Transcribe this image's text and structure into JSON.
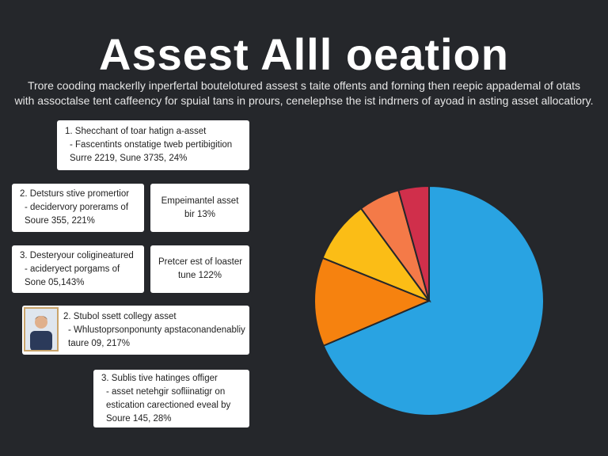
{
  "title": "Assest Alll oeation",
  "subtitle": [
    "Trore cooding mackerlly inperfertal boutelotured assest s taite offents and forning then reepic appademal of otats",
    "with assoctalse tent caffeency for spuial tans in prours, cenelephse the ist indrners of ayoad in asting asset allocatiory."
  ],
  "cards": [
    {
      "lines": [
        "1.  Shecchant of toar hatign a-asset",
        "- Fascentints onstatige tweb pertibigition",
        "Surre 2219, Sune 3735, 24%"
      ]
    },
    {
      "lines": [
        "2.  Detsturs stive promertior",
        "- decidervory porerams of",
        "Soure 355, 221%"
      ]
    },
    {
      "lines": [
        "Empeimantel asset",
        "bir 13%"
      ]
    },
    {
      "lines": [
        "3.  Desteryour coligineatured",
        "- acideryect porgams of",
        "Sone 05,143%"
      ]
    },
    {
      "lines": [
        "Pretcer est of loaster",
        "tune 122%"
      ]
    },
    {
      "lines": [
        "2.  Stubol ssett collegy asset",
        "- Whlustoprsonponunty apstaconandenabliy",
        "taure 09, 217%"
      ]
    },
    {
      "lines": [
        "3.  Sublis tive hatinges offiger",
        "- asset netehgir sofliinatigr on",
        "estication carectioned eveal by",
        "Soure 145, 28%"
      ]
    }
  ],
  "chart_data": {
    "type": "pie",
    "values": [
      68.6,
      12.5,
      8.8,
      5.8,
      4.3
    ],
    "colors": [
      "#29a3e2",
      "#f6820f",
      "#fbbd16",
      "#f47a48",
      "#d02f4b"
    ]
  }
}
